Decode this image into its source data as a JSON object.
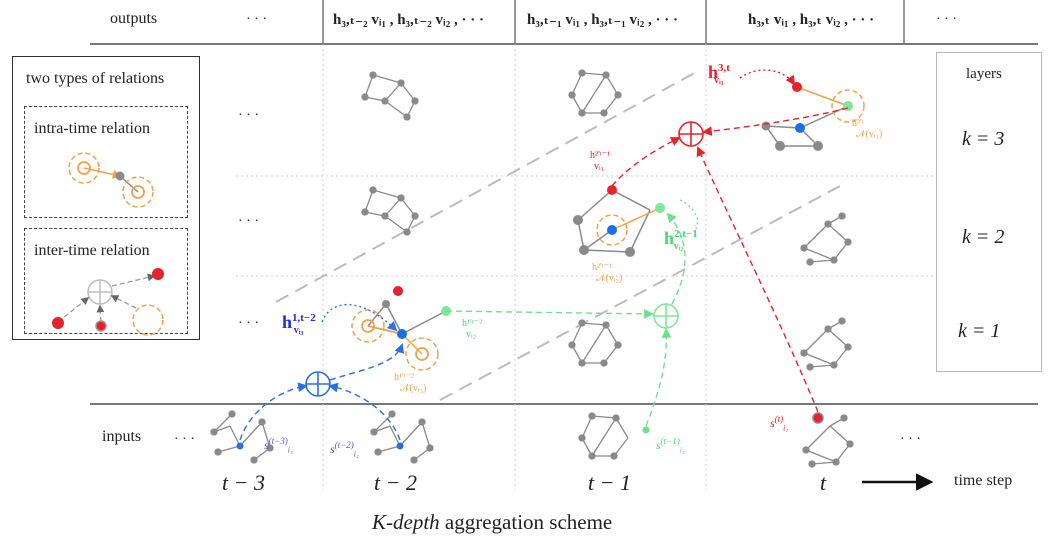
{
  "header": {
    "outputs_label": "outputs",
    "ellipsis": "· · ·",
    "cells": [
      "h₃,ₜ₋₂ vᵢ₁ , h₃,ₜ₋₂ vᵢ₂ , · · ·",
      "h₃,ₜ₋₁ vᵢ₁ , h₃,ₜ₋₁ vᵢ₂ , · · ·",
      "h₃,ₜ vᵢ₁ , h₃,ₜ vᵢ₂ , · · ·"
    ]
  },
  "legend": {
    "title": "two types of relations",
    "intra_label": "intra-time relation",
    "inter_label": "inter-time relation"
  },
  "layers": {
    "title": "layers",
    "items": [
      {
        "label": "k = 3",
        "color": "#e8222a"
      },
      {
        "label": "k = 2",
        "color": "#7ee89a"
      },
      {
        "label": "k = 1",
        "color": "#2b6fe0"
      }
    ]
  },
  "row_ellipsis": "· · ·",
  "inputs_label": "inputs",
  "time_axis": {
    "ticks": [
      "t − 3",
      "t − 2",
      "t − 1",
      "t"
    ],
    "arrow_label": "time step"
  },
  "annotations": {
    "h1_t2": "h",
    "h1_t2_sup": "1,t−2",
    "h1_t2_sub": "vᵢ₃",
    "h1n_t2": "h¹'ᵗ⁻²",
    "h1n_t2_sub": "𝒩(vᵢ₃)",
    "h1_vi2_t2": "h¹'ᵗ⁻²",
    "h1_vi2_t2_sub": "vᵢ₂",
    "h2_t1": "h",
    "h2_t1_sup": "2,t−1",
    "h2_t1_sub": "vᵢ₂",
    "h2n_t1": "h²'ᵗ⁻¹",
    "h2n_t1_sub": "𝒩(vᵢ₂)",
    "h2_vi1_t1": "h²'ᵗ⁻¹",
    "h2_vi1_t1_sub": "vᵢ₁",
    "h3_t": "h",
    "h3_t_sup": "3,t",
    "h3_t_sub": "vᵢ₁",
    "h3n_t": "h³'ᵗ",
    "h3n_t_sub": "𝒩(vᵢ₁)",
    "s_t3": "s",
    "s_t3_sup": "(t−3)",
    "s_t3_sub": "i₃",
    "s_t2": "s",
    "s_t2_sup": "(t−2)",
    "s_t2_sub": "i₃",
    "s_t1": "s",
    "s_t1_sup": "(t−1)",
    "s_t1_sub": "i₂",
    "s_t": "s",
    "s_t_sup": "(t)",
    "s_t_sub": "i₁"
  },
  "caption": {
    "italic": "K-depth",
    "rest": " aggregation scheme"
  }
}
